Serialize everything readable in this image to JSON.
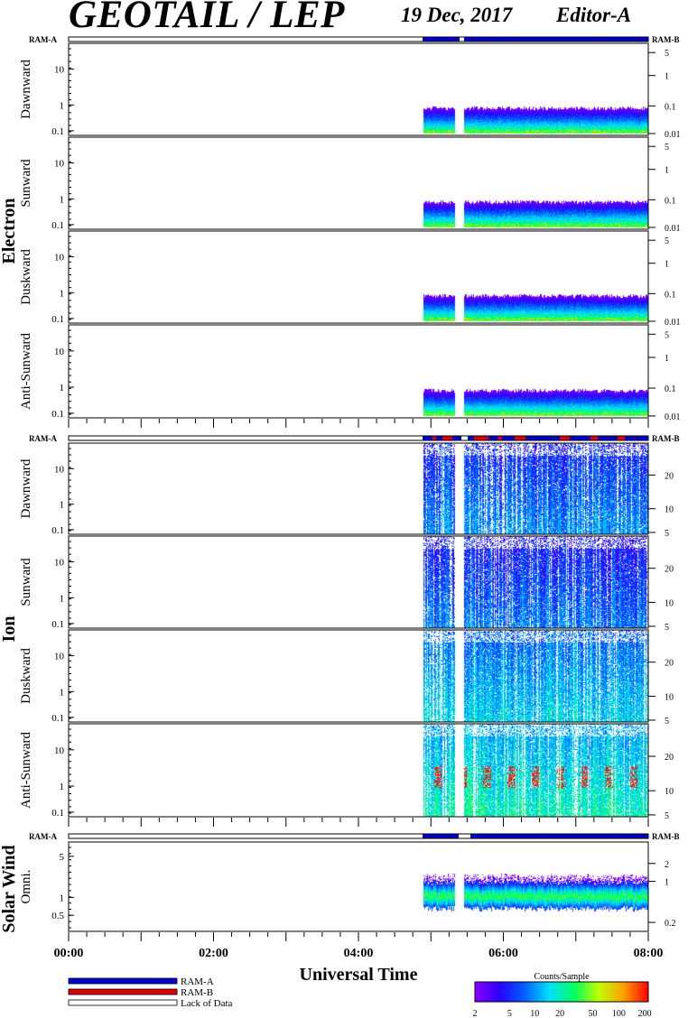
{
  "header": {
    "title": "GEOTAIL / LEP",
    "date": "19 Dec, 2017",
    "editor": "Editor-A"
  },
  "ram": {
    "a": "RAM-A",
    "b": "RAM-B"
  },
  "groups": {
    "electron": "Electron",
    "ion": "Ion",
    "solar_wind": "Solar Wind"
  },
  "panel_labels": {
    "electron": [
      "Dawnward",
      "Sunward",
      "Duskward",
      "Anti-Sunward"
    ],
    "ion": [
      "Dawnward",
      "Sunward",
      "Duskward",
      "Anti-Sunward"
    ],
    "solar_wind": [
      "Omni."
    ]
  },
  "left_ticks": {
    "electron": [
      "10",
      "1",
      "0.1"
    ],
    "ion": [
      "10",
      "1",
      "0.1"
    ],
    "solar_wind": [
      "5",
      "1",
      "0.5"
    ]
  },
  "right_ticks": {
    "electron": [
      "5",
      "1",
      "0.1",
      "0.01"
    ],
    "ion": [
      "20",
      "10",
      "5"
    ],
    "solar_wind": [
      "2",
      "1",
      "0.2"
    ]
  },
  "x_axis": {
    "label": "Universal Time",
    "ticks": [
      "00:00",
      "02:00",
      "04:00",
      "06:00",
      "08:00"
    ]
  },
  "legend": {
    "items": [
      {
        "label": "RAM-A",
        "color": "#0000cc"
      },
      {
        "label": "RAM-B",
        "color": "#dd0000"
      },
      {
        "label": "Lack of Data",
        "color": "#ffffff"
      }
    ]
  },
  "colorbar": {
    "title": "Counts/Sample",
    "ticks": [
      "2",
      "5",
      "10",
      "20",
      "50",
      "100",
      "200"
    ],
    "colors": [
      "#8a00ff",
      "#2a00ff",
      "#0060ff",
      "#00e0ff",
      "#00ff60",
      "#c0ff00",
      "#ffa000",
      "#ff0000"
    ]
  },
  "chart_data": {
    "type": "heatmap",
    "title": "GEOTAIL / LEP",
    "xlabel": "Universal Time",
    "x_range": [
      "00:00",
      "08:00"
    ],
    "data_start_ut": "04:53",
    "data_gaps_ut": [
      [
        "05:20",
        "05:28"
      ]
    ],
    "panels": [
      {
        "group": "Electron",
        "name": "Dawnward",
        "ylim": [
          0.08,
          40
        ],
        "typical_counts": "2-100"
      },
      {
        "group": "Electron",
        "name": "Sunward",
        "ylim": [
          0.08,
          40
        ],
        "typical_counts": "2-50"
      },
      {
        "group": "Electron",
        "name": "Duskward",
        "ylim": [
          0.08,
          40
        ],
        "typical_counts": "2-100"
      },
      {
        "group": "Electron",
        "name": "Anti-Sunward",
        "ylim": [
          0.08,
          40
        ],
        "typical_counts": "2-100"
      },
      {
        "group": "Ion",
        "name": "Dawnward",
        "ylim": [
          0.08,
          40
        ],
        "typical_counts": "2-20"
      },
      {
        "group": "Ion",
        "name": "Sunward",
        "ylim": [
          0.08,
          40
        ],
        "typical_counts": "2-10"
      },
      {
        "group": "Ion",
        "name": "Duskward",
        "ylim": [
          0.08,
          40
        ],
        "typical_counts": "2-50"
      },
      {
        "group": "Ion",
        "name": "Anti-Sunward",
        "ylim": [
          0.08,
          40
        ],
        "typical_counts": "2-200"
      },
      {
        "group": "Solar Wind",
        "name": "Omni.",
        "ylim": [
          0.3,
          8
        ],
        "typical_counts": "2-100"
      }
    ]
  }
}
